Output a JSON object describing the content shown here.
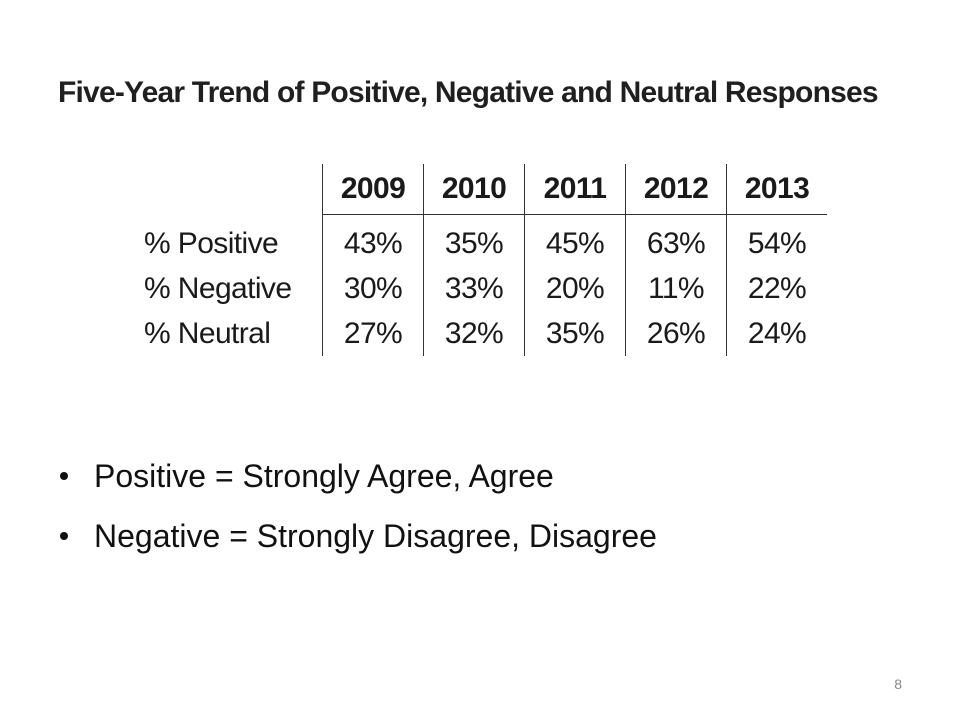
{
  "slide": {
    "title": "Five-Year Trend of Positive, Negative and Neutral Responses",
    "table": {
      "years": [
        "2009",
        "2010",
        "2011",
        "2012",
        "2013"
      ],
      "rows": [
        {
          "label": "% Positive",
          "values": [
            "43%",
            "35%",
            "45%",
            "63%",
            "54%"
          ]
        },
        {
          "label": "% Negative",
          "values": [
            "30%",
            "33%",
            "20%",
            "11%",
            "22%"
          ]
        },
        {
          "label": "% Neutral",
          "values": [
            "27%",
            "32%",
            "35%",
            "26%",
            "24%"
          ]
        }
      ]
    },
    "bullets": [
      "Positive = Strongly Agree, Agree",
      "Negative = Strongly Disagree, Disagree"
    ],
    "page_number": "8"
  }
}
